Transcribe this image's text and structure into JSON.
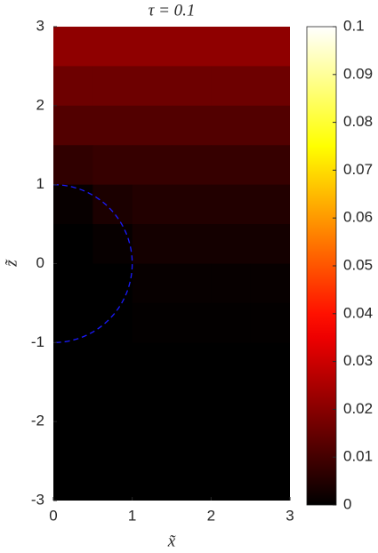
{
  "chart_data": {
    "type": "heatmap",
    "title": "τ  = 0.1",
    "xlabel": "x̃",
    "ylabel": "z̃",
    "x": [
      0.25,
      0.75,
      1.25,
      1.75,
      2.25,
      2.75
    ],
    "y": [
      2.75,
      2.25,
      1.75,
      1.25,
      0.75,
      0.25,
      -0.25,
      -0.75,
      -1.25,
      -1.75,
      -2.25,
      -2.75
    ],
    "values": [
      [
        0.021,
        0.021,
        0.021,
        0.021,
        0.021,
        0.021
      ],
      [
        0.016,
        0.016,
        0.016,
        0.016,
        0.016,
        0.016
      ],
      [
        0.012,
        0.012,
        0.012,
        0.012,
        0.012,
        0.012
      ],
      [
        0.007,
        0.008,
        0.008,
        0.008,
        0.008,
        0.008
      ],
      [
        0.001,
        0.004,
        0.005,
        0.005,
        0.005,
        0.005
      ],
      [
        0,
        0.001,
        0.003,
        0.003,
        0.003,
        0.003
      ],
      [
        0,
        0,
        0.001,
        0.001,
        0.001,
        0.001
      ],
      [
        0,
        0,
        0.0005,
        0.0005,
        0.0005,
        0.0005
      ],
      [
        0,
        0,
        0,
        0,
        0,
        0
      ],
      [
        0,
        0,
        0,
        0,
        0,
        0
      ],
      [
        0,
        0,
        0,
        0,
        0,
        0
      ],
      [
        0,
        0,
        0,
        0,
        0,
        0
      ]
    ],
    "colormap": "hot",
    "clim": [
      0,
      0.1
    ],
    "cticks": [
      0,
      0.01,
      0.02,
      0.03,
      0.04,
      0.05,
      0.06,
      0.07,
      0.08,
      0.09,
      0.1
    ],
    "xlim": [
      0,
      3
    ],
    "xticks": [
      0,
      1,
      2,
      3
    ],
    "ylim": [
      -3,
      3
    ],
    "yticks": [
      -3,
      -2,
      -1,
      0,
      1,
      2,
      3
    ],
    "circle": {
      "radius": 1,
      "color": "#1a1aff"
    }
  }
}
